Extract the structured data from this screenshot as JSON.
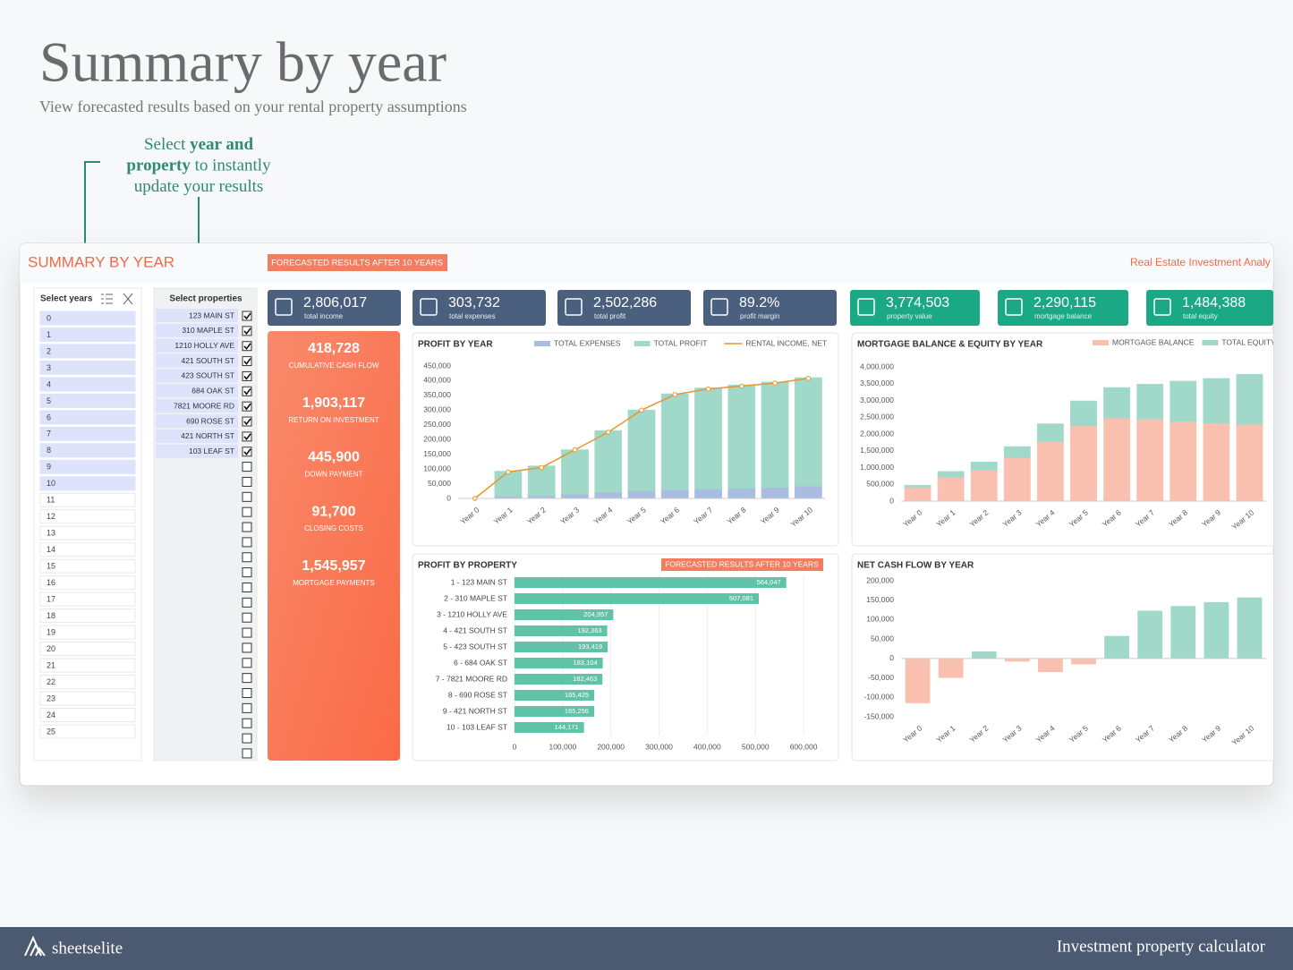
{
  "header": {
    "title": "Summary by year",
    "subtitle": "View forecasted results based on your rental property assumptions"
  },
  "callout": {
    "lines": [
      [
        {
          "text": "Select ",
          "bold": false
        },
        {
          "text": "year and",
          "bold": true
        }
      ],
      [
        {
          "text": "property",
          "bold": true
        },
        {
          "text": " to instantly",
          "bold": false
        }
      ],
      [
        {
          "text": "update your results",
          "bold": false
        }
      ]
    ]
  },
  "dashboard": {
    "title": "SUMMARY BY YEAR",
    "badge": "FORECASTED RESULTS AFTER 10 YEARS",
    "brand": "Real Estate Investment Analy",
    "year_slicer": {
      "label": "Select years",
      "items": [
        {
          "label": 0,
          "selected": true
        },
        {
          "label": 1,
          "selected": true
        },
        {
          "label": 2,
          "selected": true
        },
        {
          "label": 3,
          "selected": true
        },
        {
          "label": 4,
          "selected": true
        },
        {
          "label": 5,
          "selected": true
        },
        {
          "label": 6,
          "selected": true
        },
        {
          "label": 7,
          "selected": true
        },
        {
          "label": 8,
          "selected": true
        },
        {
          "label": 9,
          "selected": true
        },
        {
          "label": 10,
          "selected": true
        },
        {
          "label": 11,
          "selected": false
        },
        {
          "label": 12,
          "selected": false
        },
        {
          "label": 13,
          "selected": false
        },
        {
          "label": 14,
          "selected": false
        },
        {
          "label": 15,
          "selected": false
        },
        {
          "label": 16,
          "selected": false
        },
        {
          "label": 17,
          "selected": false
        },
        {
          "label": 18,
          "selected": false
        },
        {
          "label": 19,
          "selected": false
        },
        {
          "label": 20,
          "selected": false
        },
        {
          "label": 21,
          "selected": false
        },
        {
          "label": 22,
          "selected": false
        },
        {
          "label": 23,
          "selected": false
        },
        {
          "label": 24,
          "selected": false
        },
        {
          "label": 25,
          "selected": false
        }
      ]
    },
    "property_slicer": {
      "label": "Select properties",
      "items": [
        {
          "label": "123 MAIN ST",
          "checked": true
        },
        {
          "label": "310 MAPLE ST",
          "checked": true
        },
        {
          "label": "1210 HOLLY AVE",
          "checked": true
        },
        {
          "label": "421 SOUTH ST",
          "checked": true
        },
        {
          "label": "423 SOUTH ST",
          "checked": true
        },
        {
          "label": "684 OAK ST",
          "checked": true
        },
        {
          "label": "7821 MOORE RD",
          "checked": true
        },
        {
          "label": "690 ROSE ST",
          "checked": true
        },
        {
          "label": "421 NORTH ST",
          "checked": true
        },
        {
          "label": "103 LEAF ST",
          "checked": true
        }
      ]
    },
    "kpis": [
      {
        "value": "2,806,017",
        "label": "total income",
        "color": "#4b5f7f"
      },
      {
        "value": "303,732",
        "label": "total expenses",
        "color": "#4b5f7f"
      },
      {
        "value": "2,502,286",
        "label": "total profit",
        "color": "#4b5f7f"
      },
      {
        "value": "89.2%",
        "label": "profit margin",
        "color": "#4b5f7f"
      },
      {
        "value": "3,774,503",
        "label": "property value",
        "color": "#1ba985"
      },
      {
        "value": "2,290,115",
        "label": "mortgage balance",
        "color": "#1ba985"
      },
      {
        "value": "1,484,388",
        "label": "total equity",
        "color": "#1ba985"
      }
    ],
    "cumulative": [
      {
        "value": "418,728",
        "label": "CUMULATIVE CASH FLOW"
      },
      {
        "value": "1,903,117",
        "label": "RETURN ON INVESTMENT"
      },
      {
        "value": "445,900",
        "label": "DOWN PAYMENT"
      },
      {
        "value": "91,700",
        "label": "CLOSING COSTS"
      },
      {
        "value": "1,545,957",
        "label": "MORTGAGE PAYMENTS"
      }
    ]
  },
  "chart_data": [
    {
      "type": "bar",
      "title": "PROFIT BY YEAR",
      "stacked": true,
      "categories": [
        "Year 0",
        "Year 1",
        "Year 2",
        "Year 3",
        "Year 4",
        "Year 5",
        "Year 6",
        "Year 7",
        "Year 8",
        "Year 9",
        "Year 10"
      ],
      "series": [
        {
          "name": "TOTAL EXPENSES",
          "color": "#a8bde0",
          "values": [
            0,
            8000,
            10000,
            15000,
            22000,
            27000,
            30000,
            33000,
            35000,
            38000,
            42000
          ]
        },
        {
          "name": "TOTAL PROFIT",
          "color": "#a0d9c9",
          "values": [
            0,
            84000,
            100000,
            150000,
            208000,
            273000,
            325000,
            342000,
            350000,
            357000,
            368000
          ]
        },
        {
          "name": "RENTAL INCOME, NET",
          "type": "line",
          "color": "#e8962e",
          "values": [
            0,
            90000,
            105000,
            165000,
            225000,
            300000,
            353000,
            372000,
            382000,
            392000,
            408000
          ]
        }
      ],
      "ylim": [
        0,
        450000
      ],
      "yticks": [
        0,
        {
          "value": 50000,
          "label": "50,000"
        },
        {
          "value": 100000,
          "label": "100,000"
        },
        {
          "value": 150000,
          "label": "150,000"
        },
        {
          "value": 200000,
          "label": "200,000"
        },
        {
          "value": 250000,
          "label": "250,000"
        },
        {
          "value": 300000,
          "label": "300,000"
        },
        {
          "value": 350000,
          "label": "350,000"
        },
        {
          "value": 400000,
          "label": "400,000"
        },
        {
          "value": 450000,
          "label": "450,000"
        }
      ]
    },
    {
      "type": "bar",
      "title": "MORTGAGE BALANCE & EQUITY BY YEAR",
      "stacked": true,
      "categories": [
        "Year 0",
        "Year 1",
        "Year 2",
        "Year 3",
        "Year 4",
        "Year 5",
        "Year 6",
        "Year 7",
        "Year 8",
        "Year 9",
        "Year 10"
      ],
      "series": [
        {
          "name": "MORTGAGE BALANCE",
          "color": "#f9c0af",
          "values": [
            420000,
            720000,
            920000,
            1300000,
            1780000,
            2250000,
            2480000,
            2450000,
            2380000,
            2330000,
            2290115
          ]
        },
        {
          "name": "TOTAL EQUITY",
          "color": "#a0d9c9",
          "values": [
            50000,
            160000,
            240000,
            320000,
            520000,
            730000,
            900000,
            1030000,
            1190000,
            1320000,
            1484388
          ]
        }
      ],
      "ylim": [
        0,
        4000000
      ],
      "yticks": [
        0,
        {
          "value": 500000,
          "label": "500,000"
        },
        {
          "value": 1000000,
          "label": "1,000,000"
        },
        {
          "value": 1500000,
          "label": "1,500,000"
        },
        {
          "value": 2000000,
          "label": "2,000,000"
        },
        {
          "value": 2500000,
          "label": "2,500,000"
        },
        {
          "value": 3000000,
          "label": "3,000,000"
        },
        {
          "value": 3500000,
          "label": "3,500,000"
        },
        {
          "value": 4000000,
          "label": "4,000,000"
        }
      ]
    },
    {
      "type": "barh",
      "title": "PROFIT BY PROPERTY",
      "annotation": "FORECASTED RESULTS AFTER 10 YEARS",
      "grid": true,
      "color": "#5fc3a8",
      "categories": [
        "1 - 123 MAIN ST",
        "2 - 310 MAPLE ST",
        "3 - 1210 HOLLY AVE",
        "4 - 421 SOUTH ST",
        "5 - 423 SOUTH ST",
        "6 - 684 OAK ST",
        "7 - 7821 MOORE RD",
        "8 - 690 ROSE ST",
        "9 - 421 NORTH ST",
        "10 - 103 LEAF ST"
      ],
      "values": [
        564047,
        507081,
        204957,
        192363,
        193419,
        183104,
        182463,
        165425,
        165256,
        144171
      ],
      "value_labels": [
        "564,047",
        "507,081",
        "204,957",
        "192,363",
        "193,419",
        "183,104",
        "182,463",
        "165,425",
        "165,256",
        "144,171"
      ],
      "xlim": [
        0,
        650000
      ],
      "xticks": [
        0,
        {
          "value": 100000,
          "label": "100,000"
        },
        {
          "value": 200000,
          "label": "200,000"
        },
        {
          "value": 300000,
          "label": "300,000"
        },
        {
          "value": 400000,
          "label": "400,000"
        },
        {
          "value": 500000,
          "label": "500,000"
        },
        {
          "value": 600000,
          "label": "600,000"
        }
      ]
    },
    {
      "type": "bar",
      "title": "NET CASH FLOW BY YEAR",
      "color": "#a0d9c9",
      "negative_color": "#f9c0af",
      "categories": [
        "Year 0",
        "Year 1",
        "Year 2",
        "Year 3",
        "Year 4",
        "Year 5",
        "Year 6",
        "Year 7",
        "Year 8",
        "Year 9",
        "Year 10"
      ],
      "values": [
        -115000,
        -50000,
        18000,
        -8000,
        -35000,
        -15000,
        58000,
        123000,
        135000,
        145000,
        157000
      ],
      "ylim": [
        -150000,
        200000
      ],
      "yticks": [
        {
          "value": -150000,
          "label": "-150,000"
        },
        {
          "value": -100000,
          "label": "-100,000"
        },
        {
          "value": -50000,
          "label": "-50,000"
        },
        0,
        {
          "value": 50000,
          "label": "50,000"
        },
        {
          "value": 100000,
          "label": "100,000"
        },
        {
          "value": 150000,
          "label": "150,000"
        },
        {
          "value": 200000,
          "label": "200,000"
        }
      ]
    }
  ],
  "footer": {
    "brand": "sheetselite",
    "tagline": "Investment property calculator"
  }
}
